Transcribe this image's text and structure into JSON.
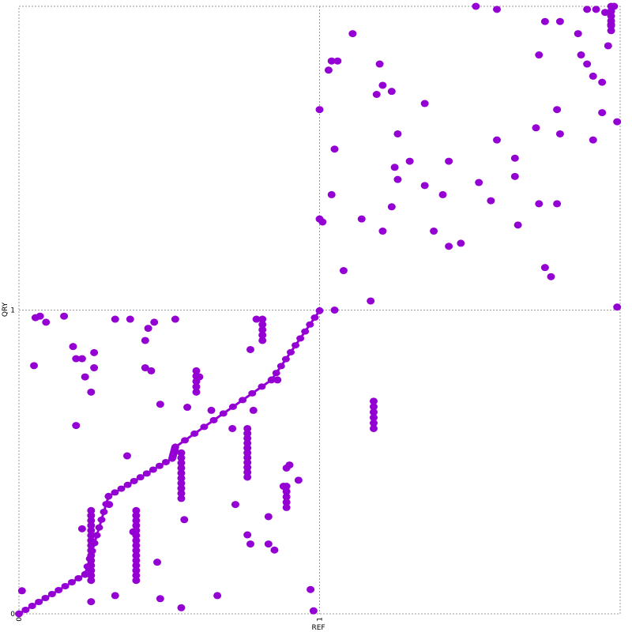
{
  "chart_data": {
    "type": "scatter",
    "title": "",
    "xlabel": "REF",
    "ylabel": "QRY",
    "x_ticks": [
      "0",
      "1"
    ],
    "y_ticks": [
      "0",
      "1"
    ],
    "grid": true,
    "grid_style": "dotted",
    "colors": {
      "series": "#9400D3",
      "grid": "#999999",
      "frame": "#888888"
    },
    "main_line": [
      [
        0,
        0
      ],
      [
        0.22,
        0.13
      ],
      [
        0.298,
        0.387
      ],
      [
        0.51,
        0.512
      ],
      [
        0.52,
        0.549
      ],
      [
        0.84,
        0.77
      ],
      [
        1.0,
        0.998
      ]
    ],
    "vertical_runs": [
      {
        "x": 0.24,
        "y_min": 0.11,
        "y_max": 0.34
      },
      {
        "x": 0.39,
        "y_min": 0.11,
        "y_max": 0.34
      },
      {
        "x": 0.54,
        "y_min": 0.38,
        "y_max": 0.53
      },
      {
        "x": 0.76,
        "y_min": 0.45,
        "y_max": 0.61
      },
      {
        "x": 0.89,
        "y_min": 0.35,
        "y_max": 0.42
      },
      {
        "x": 0.59,
        "y_min": 0.73,
        "y_max": 0.8
      },
      {
        "x": 0.81,
        "y_min": 0.9,
        "y_max": 0.97
      },
      {
        "x": 1.18,
        "y_min": 0.61,
        "y_max": 0.7
      },
      {
        "x": 1.97,
        "y_min": 1.92,
        "y_max": 2.0
      }
    ],
    "points": [
      [
        0.01,
        0.076
      ],
      [
        0.055,
        0.975
      ],
      [
        0.05,
        0.817
      ],
      [
        0.09,
        0.96
      ],
      [
        0.18,
        0.88
      ],
      [
        0.07,
        0.98
      ],
      [
        0.21,
        0.84
      ],
      [
        0.19,
        0.62
      ],
      [
        0.25,
        0.86
      ],
      [
        0.25,
        0.81
      ],
      [
        0.22,
        0.78
      ],
      [
        0.24,
        0.73
      ],
      [
        0.32,
        0.97
      ],
      [
        0.37,
        0.97
      ],
      [
        0.42,
        0.81
      ],
      [
        0.42,
        0.9
      ],
      [
        0.43,
        0.94
      ],
      [
        0.44,
        0.8
      ],
      [
        0.45,
        0.96
      ],
      [
        0.52,
        0.97
      ],
      [
        0.36,
        0.52
      ],
      [
        0.47,
        0.69
      ],
      [
        0.3,
        0.36
      ],
      [
        0.56,
        0.68
      ],
      [
        0.6,
        0.78
      ],
      [
        0.64,
        0.67
      ],
      [
        0.71,
        0.61
      ],
      [
        0.72,
        0.36
      ],
      [
        0.55,
        0.31
      ],
      [
        0.38,
        0.27
      ],
      [
        0.83,
        0.23
      ],
      [
        0.85,
        0.21
      ],
      [
        0.47,
        0.05
      ],
      [
        0.54,
        0.02
      ],
      [
        0.66,
        0.06
      ],
      [
        0.32,
        0.06
      ],
      [
        0.46,
        0.17
      ],
      [
        0.24,
        0.04
      ],
      [
        0.77,
        0.23
      ],
      [
        0.76,
        0.26
      ],
      [
        0.83,
        0.32
      ],
      [
        0.97,
        0.08
      ],
      [
        0.98,
        0.01
      ],
      [
        0.19,
        0.84
      ],
      [
        0.21,
        0.28
      ],
      [
        0.15,
        0.98
      ],
      [
        0.78,
        0.67
      ],
      [
        0.93,
        0.44
      ],
      [
        0.89,
        0.48
      ],
      [
        0.9,
        0.49
      ],
      [
        0.88,
        0.42
      ],
      [
        0.77,
        0.87
      ],
      [
        0.79,
        0.97
      ],
      [
        0.86,
        0.77
      ],
      [
        1.05,
        1.0
      ],
      [
        1.0,
        1.66
      ],
      [
        1.03,
        1.79
      ],
      [
        1.04,
        1.82
      ],
      [
        1.11,
        1.91
      ],
      [
        1.06,
        1.82
      ],
      [
        1.05,
        1.53
      ],
      [
        1.04,
        1.38
      ],
      [
        1.01,
        1.29
      ],
      [
        1.2,
        1.81
      ],
      [
        1.21,
        1.74
      ],
      [
        1.19,
        1.71
      ],
      [
        1.24,
        1.72
      ],
      [
        1.17,
        1.03
      ],
      [
        1.24,
        1.34
      ],
      [
        1.26,
        1.58
      ],
      [
        1.3,
        1.49
      ],
      [
        1.35,
        1.41
      ],
      [
        1.41,
        1.38
      ],
      [
        1.43,
        1.49
      ],
      [
        1.53,
        1.42
      ],
      [
        1.57,
        1.36
      ],
      [
        1.65,
        1.44
      ],
      [
        1.59,
        1.56
      ],
      [
        1.65,
        1.5
      ],
      [
        1.73,
        1.84
      ],
      [
        1.75,
        1.95
      ],
      [
        1.52,
        2.0
      ],
      [
        1.59,
        1.99
      ],
      [
        1.8,
        1.58
      ],
      [
        1.79,
        1.66
      ],
      [
        1.72,
        1.6
      ],
      [
        1.8,
        1.95
      ],
      [
        1.87,
        1.84
      ],
      [
        1.91,
        1.77
      ],
      [
        1.94,
        1.75
      ],
      [
        1.89,
        1.99
      ],
      [
        1.92,
        1.99
      ],
      [
        1.94,
        1.65
      ],
      [
        1.99,
        1.62
      ],
      [
        1.95,
        1.98
      ],
      [
        1.99,
        1.01
      ],
      [
        1.91,
        1.56
      ],
      [
        1.89,
        1.81
      ],
      [
        1.26,
        1.43
      ],
      [
        1.35,
        1.68
      ],
      [
        1.25,
        1.47
      ],
      [
        1.21,
        1.26
      ],
      [
        1.14,
        1.3
      ],
      [
        1.66,
        1.28
      ],
      [
        1.73,
        1.35
      ],
      [
        1.75,
        1.14
      ],
      [
        1.77,
        1.11
      ],
      [
        1.79,
        1.35
      ],
      [
        1.38,
        1.26
      ],
      [
        1.43,
        1.21
      ],
      [
        1.47,
        1.22
      ],
      [
        1.0,
        1.3
      ],
      [
        1.08,
        1.13
      ],
      [
        1.96,
        1.87
      ],
      [
        1.97,
        1.94
      ],
      [
        1.86,
        1.91
      ],
      [
        1.98,
        2.0
      ]
    ],
    "xlim": [
      0,
      2
    ],
    "ylim": [
      0,
      2
    ]
  }
}
